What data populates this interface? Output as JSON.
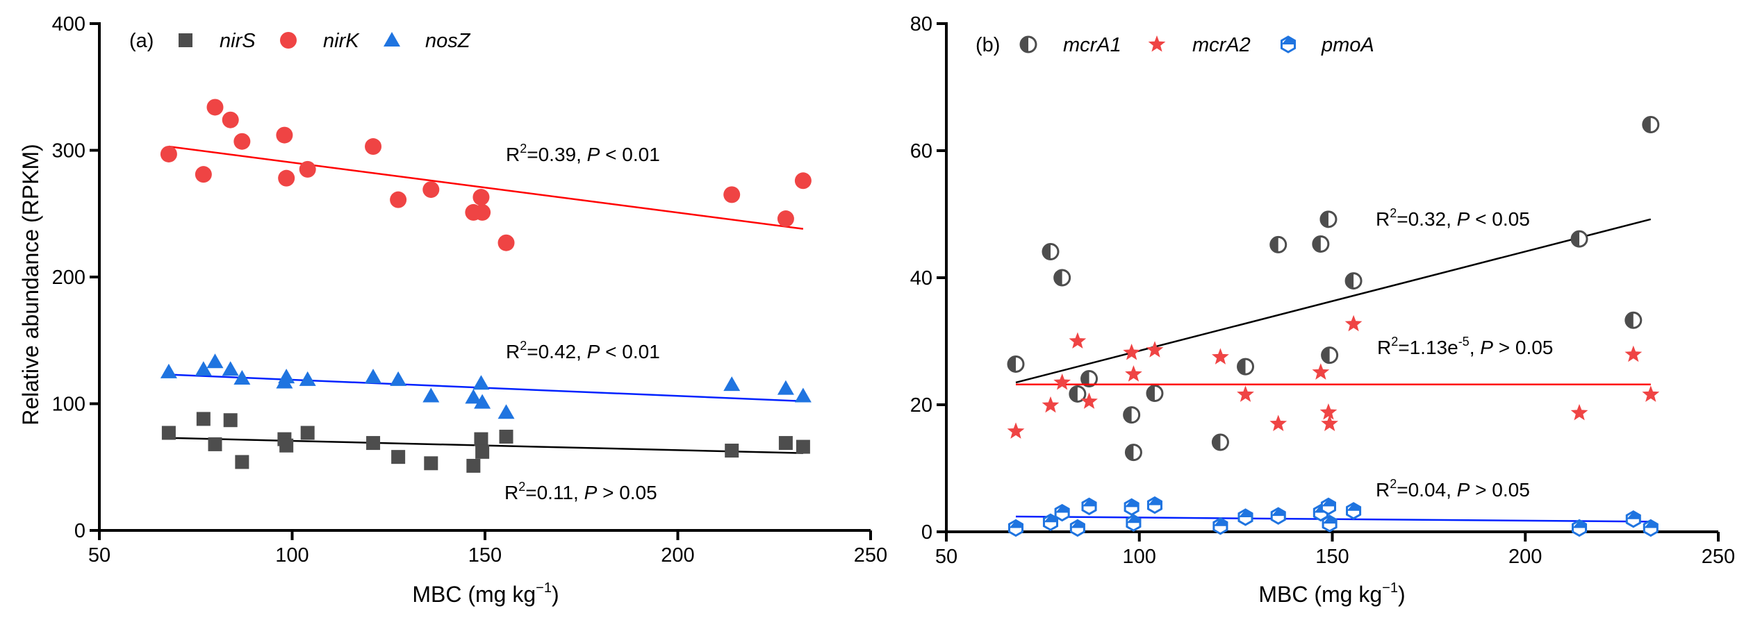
{
  "chart_data": [
    {
      "type": "scatter",
      "panel_label": "(a)",
      "xlabel": "MBC (mg kg",
      "xlabel_sup": "−1",
      "xlabel_end": ")",
      "ylabel": "Relative abundance (RPKM)",
      "xlim": [
        50,
        250
      ],
      "ylim": [
        0,
        400
      ],
      "xticks": [
        "50",
        "100",
        "150",
        "200",
        "250"
      ],
      "yticks": [
        "0",
        "100",
        "200",
        "300",
        "400"
      ],
      "xtick_values": [
        50,
        100,
        150,
        200,
        250
      ],
      "ytick_values": [
        0,
        100,
        200,
        300,
        400
      ],
      "legend_position": "top-left",
      "x": [
        68,
        77,
        80,
        84,
        87,
        98,
        98.5,
        104,
        121,
        127.5,
        136,
        147,
        149,
        149.3,
        155.5,
        214,
        228,
        232.5
      ],
      "series": [
        {
          "name": "nirS",
          "marker": "square",
          "color": "#4d4d4d",
          "line_color": "#000000",
          "values": [
            77,
            88,
            68,
            87,
            54,
            72,
            67,
            77,
            69,
            58,
            53,
            51,
            72,
            62,
            74,
            63,
            69,
            66
          ],
          "fit": [
            [
              68,
              73
            ],
            [
              232.5,
              61
            ]
          ],
          "r2": "0.11",
          "p": "> 0.05"
        },
        {
          "name": "nirK",
          "marker": "circle",
          "color": "#ef4444",
          "line_color": "#ff0000",
          "values": [
            297,
            281,
            334,
            324,
            307,
            312,
            278,
            285,
            303,
            261,
            269,
            251,
            263,
            251,
            227,
            265,
            246,
            276
          ],
          "fit": [
            [
              68,
              303
            ],
            [
              232.5,
              238
            ]
          ],
          "r2": "0.42",
          "p": "< 0.01"
        },
        {
          "name": "nosZ",
          "marker": "triangle",
          "color": "#1f74e0",
          "line_color": "#0022ff",
          "values": [
            125,
            127,
            133,
            127,
            120,
            117,
            121,
            119,
            121,
            119,
            106,
            105,
            116,
            101,
            93,
            115,
            112,
            106
          ],
          "fit": [
            [
              68,
              123
            ],
            [
              232.5,
              102
            ]
          ],
          "r2": "0.39",
          "p": "< 0.01"
        }
      ]
    },
    {
      "type": "scatter",
      "panel_label": "(b)",
      "xlabel": "MBC (mg kg",
      "xlabel_sup": "−1",
      "xlabel_end": ")",
      "ylabel": "",
      "xlim": [
        50,
        250
      ],
      "ylim": [
        0,
        80
      ],
      "xticks": [
        "50",
        "100",
        "150",
        "200",
        "250"
      ],
      "yticks": [
        "0",
        "20",
        "40",
        "60",
        "80"
      ],
      "xtick_values": [
        50,
        100,
        150,
        200,
        250
      ],
      "ytick_values": [
        0,
        20,
        40,
        60,
        80
      ],
      "legend_position": "top-left",
      "x": [
        68,
        77,
        80,
        84,
        87,
        98,
        98.5,
        104,
        121,
        127.5,
        136,
        147,
        149,
        149.3,
        155.5,
        214,
        228,
        232.5
      ],
      "series": [
        {
          "name": "mcrA1",
          "marker": "half-circle",
          "color": "#4d4d4d",
          "line_color": "#000000",
          "values": [
            26.4,
            44.1,
            40,
            21.7,
            24.1,
            18.4,
            12.5,
            21.8,
            14.1,
            26,
            45.2,
            45.3,
            49.2,
            27.8,
            39.5,
            46.1,
            33.3,
            64.1
          ],
          "fit": [
            [
              68,
              23.5
            ],
            [
              232.5,
              49.2
            ]
          ],
          "r2": "0.32",
          "p": "< 0.05"
        },
        {
          "name": "mcrA2",
          "marker": "star",
          "color": "#ef4444",
          "line_color": "#ff0000",
          "values": [
            15.8,
            19.9,
            23.5,
            30,
            20.5,
            28.2,
            24.8,
            28.6,
            27.5,
            21.6,
            17,
            25.1,
            18.8,
            17,
            32.7,
            18.7,
            27.9,
            21.6
          ],
          "fit": [
            [
              68,
              23.2
            ],
            [
              232.5,
              23.2
            ]
          ],
          "r2": "1.13e",
          "r2_exp": "-5",
          "p": "> 0.05"
        },
        {
          "name": "pmoA",
          "marker": "half-hexagon",
          "color": "#1f74e0",
          "line_color": "#0022ff",
          "values": [
            0.6,
            1.5,
            3,
            0.6,
            4,
            3.9,
            1.4,
            4.2,
            0.9,
            2.3,
            2.5,
            3,
            4,
            1.3,
            3.3,
            0.6,
            2,
            0.6
          ],
          "fit": [
            [
              68,
              2.4
            ],
            [
              232.5,
              1.6
            ]
          ],
          "r2": "0.04",
          "p": "> 0.05"
        }
      ]
    }
  ]
}
